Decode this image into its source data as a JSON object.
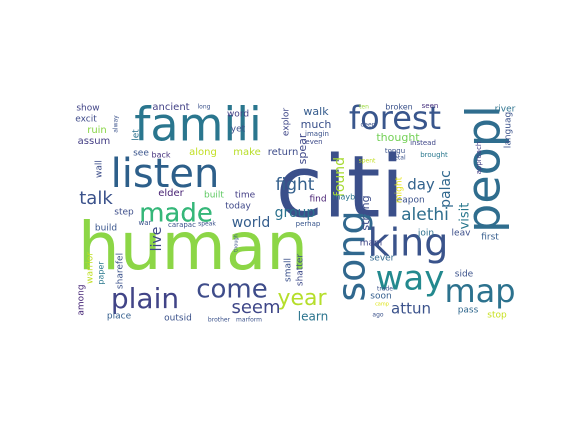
{
  "words": [
    {
      "text": "citi",
      "color": "#3b4f8a"
    },
    {
      "text": "human",
      "color": "#8cd646"
    },
    {
      "text": "famili",
      "color": "#2a768e"
    },
    {
      "text": "peopl",
      "color": "#2f6d8e"
    },
    {
      "text": "listen",
      "color": "#2d5f8a"
    },
    {
      "text": "song",
      "color": "#31688e"
    },
    {
      "text": "king",
      "color": "#3a538b"
    },
    {
      "text": "forest",
      "color": "#39568c"
    },
    {
      "text": "way",
      "color": "#23898e"
    },
    {
      "text": "map",
      "color": "#2c728e"
    },
    {
      "text": "plain",
      "color": "#414487"
    },
    {
      "text": "made",
      "color": "#35b779"
    },
    {
      "text": "come",
      "color": "#3e4c8a"
    },
    {
      "text": "year",
      "color": "#b5de2b"
    },
    {
      "text": "seem",
      "color": "#3f4788"
    },
    {
      "text": "talk",
      "color": "#3b528b"
    },
    {
      "text": "fight",
      "color": "#34608d"
    },
    {
      "text": "alethi",
      "color": "#2e6e8e"
    },
    {
      "text": "attun",
      "color": "#3b528b"
    },
    {
      "text": "world",
      "color": "#355e8d"
    },
    {
      "text": "group",
      "color": "#2c728e"
    },
    {
      "text": "day",
      "color": "#33638d"
    },
    {
      "text": "found",
      "color": "#a8db34"
    },
    {
      "text": "live",
      "color": "#3e4989"
    },
    {
      "text": "palac",
      "color": "#31688e"
    },
    {
      "text": "visit",
      "color": "#2a788e"
    },
    {
      "text": "learn",
      "color": "#2b748e"
    },
    {
      "text": "spear",
      "color": "#3f4889"
    },
    {
      "text": "thought",
      "color": "#73d056"
    },
    {
      "text": "strang",
      "color": "#3d4d8a"
    },
    {
      "text": "walk",
      "color": "#365c8d"
    },
    {
      "text": "much",
      "color": "#3b518b"
    },
    {
      "text": "made",
      "color": "#35b779"
    },
    {
      "text": "ancient",
      "color": "#424186"
    },
    {
      "text": "show",
      "color": "#414487"
    },
    {
      "text": "excit",
      "color": "#3e4a89"
    },
    {
      "text": "assum",
      "color": "#433d84"
    },
    {
      "text": "ruin",
      "color": "#89d548"
    },
    {
      "text": "wall",
      "color": "#3d4e8a"
    },
    {
      "text": "let",
      "color": "#2c728e"
    },
    {
      "text": "see",
      "color": "#3a548c"
    },
    {
      "text": "back",
      "color": "#46327e"
    },
    {
      "text": "along",
      "color": "#c2df23"
    },
    {
      "text": "make",
      "color": "#b8de29"
    },
    {
      "text": "return",
      "color": "#3e4c8a"
    },
    {
      "text": "explor",
      "color": "#3f4788"
    },
    {
      "text": "word",
      "color": "#424086"
    },
    {
      "text": "yet",
      "color": "#3c508b"
    },
    {
      "text": "time",
      "color": "#433e85"
    },
    {
      "text": "today",
      "color": "#3f4889"
    },
    {
      "text": "built",
      "color": "#5ec962"
    },
    {
      "text": "elder",
      "color": "#482374"
    },
    {
      "text": "step",
      "color": "#3d4e8a"
    },
    {
      "text": "build",
      "color": "#39558c"
    },
    {
      "text": "warrior",
      "color": "#c0df25"
    },
    {
      "text": "paper",
      "color": "#2a788e"
    },
    {
      "text": "sharefel",
      "color": "#3b528b"
    },
    {
      "text": "among",
      "color": "#482878"
    },
    {
      "text": "place",
      "color": "#355f8d"
    },
    {
      "text": "outsid",
      "color": "#3b528b"
    },
    {
      "text": "small",
      "color": "#3b518b"
    },
    {
      "text": "shatter",
      "color": "#3e4a89"
    },
    {
      "text": "mani",
      "color": "#404688"
    },
    {
      "text": "sever",
      "color": "#31688e"
    },
    {
      "text": "soon",
      "color": "#355e8d"
    },
    {
      "text": "join",
      "color": "#2d708e"
    },
    {
      "text": "leav",
      "color": "#3c4f8a"
    },
    {
      "text": "first",
      "color": "#365d8d"
    },
    {
      "text": "side",
      "color": "#3b528b"
    },
    {
      "text": "pass",
      "color": "#31688e"
    },
    {
      "text": "stop",
      "color": "#c8e020"
    },
    {
      "text": "weapon",
      "color": "#3b528b"
    },
    {
      "text": "might",
      "color": "#e5e419"
    },
    {
      "text": "approach",
      "color": "#433e85"
    },
    {
      "text": "river",
      "color": "#2c728e"
    },
    {
      "text": "languag",
      "color": "#3b528b"
    },
    {
      "text": "broken",
      "color": "#3b528b"
    },
    {
      "text": "seen",
      "color": "#46307e"
    },
    {
      "text": "ten",
      "color": "#9bd93c"
    },
    {
      "text": "imagin",
      "color": "#3b528b"
    },
    {
      "text": "even",
      "color": "#3e4a89"
    },
    {
      "text": "find",
      "color": "#482173"
    },
    {
      "text": "mayb",
      "color": "#2b748e"
    },
    {
      "text": "perhap",
      "color": "#39568c"
    },
    {
      "text": "tongu",
      "color": "#3b528b"
    },
    {
      "text": "instead",
      "color": "#3f4788"
    },
    {
      "text": "brought",
      "color": "#2a788e"
    },
    {
      "text": "metal",
      "color": "#3b528b"
    },
    {
      "text": "trade",
      "color": "#3b528b"
    },
    {
      "text": "spent",
      "color": "#c2df23"
    },
    {
      "text": "ago",
      "color": "#3b528b"
    },
    {
      "text": "camp",
      "color": "#dde318"
    },
    {
      "text": "brother",
      "color": "#3b528b"
    },
    {
      "text": "marform",
      "color": "#3b528b"
    },
    {
      "text": "speak",
      "color": "#3b528b"
    },
    {
      "text": "carapac",
      "color": "#3b528b"
    },
    {
      "text": "war",
      "color": "#3b528b"
    },
    {
      "text": "long",
      "color": "#3b528b"
    },
    {
      "text": "alway",
      "color": "#3b528b"
    },
    {
      "text": "though",
      "color": "#3b528b"
    },
    {
      "text": "deep",
      "color": "#3b528b"
    }
  ]
}
